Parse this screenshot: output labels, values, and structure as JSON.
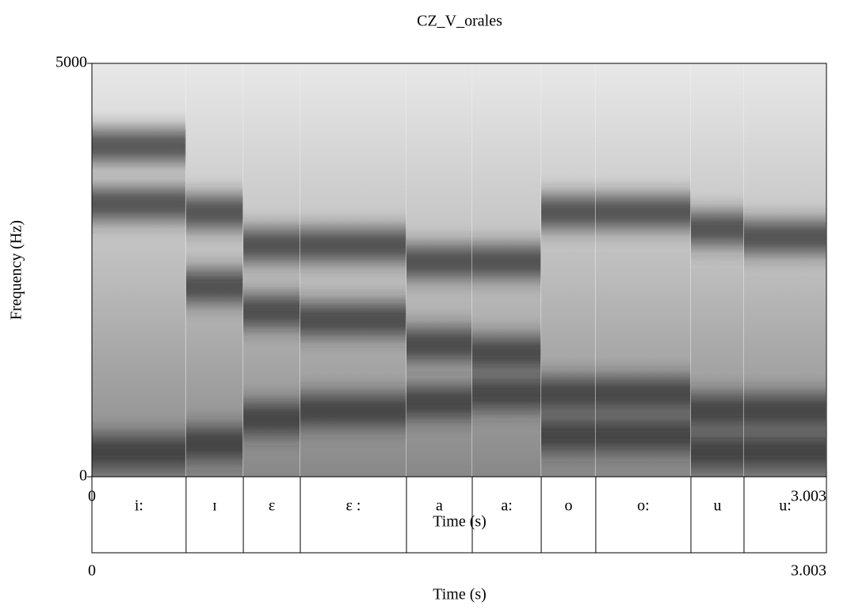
{
  "chart_data": {
    "type": "spectrogram",
    "title": "CZ_V_orales",
    "xlabel": "Time (s)",
    "ylabel": "Frequency (Hz)",
    "xlim": [
      0,
      3.003
    ],
    "xticks": [
      0,
      3.003
    ],
    "ylim": [
      0,
      5000
    ],
    "yticks": [
      0,
      5000
    ],
    "segments": [
      {
        "label": "i:",
        "start": 0,
        "end": 0.385,
        "formants": [
          300,
          3300,
          4000
        ]
      },
      {
        "label": "ɪ",
        "start": 0.385,
        "end": 0.619,
        "formants": [
          400,
          2300,
          3200
        ]
      },
      {
        "label": "ɛ",
        "start": 0.619,
        "end": 0.852,
        "formants": [
          700,
          2000,
          2800
        ]
      },
      {
        "label": "ɛ :",
        "start": 0.852,
        "end": 1.286,
        "formants": [
          800,
          1900,
          2800
        ]
      },
      {
        "label": "a",
        "start": 1.286,
        "end": 1.555,
        "formants": [
          900,
          1600,
          2600
        ]
      },
      {
        "label": "a:",
        "start": 1.555,
        "end": 1.837,
        "formants": [
          1000,
          1500,
          2600
        ]
      },
      {
        "label": "o",
        "start": 1.837,
        "end": 2.06,
        "formants": [
          500,
          1000,
          3200
        ]
      },
      {
        "label": "o:",
        "start": 2.06,
        "end": 2.449,
        "formants": [
          500,
          1000,
          3200
        ]
      },
      {
        "label": "u",
        "start": 2.449,
        "end": 2.666,
        "formants": [
          300,
          800,
          3000
        ]
      },
      {
        "label": "u:",
        "start": 2.666,
        "end": 3.003,
        "formants": [
          300,
          800,
          2900
        ]
      }
    ]
  }
}
